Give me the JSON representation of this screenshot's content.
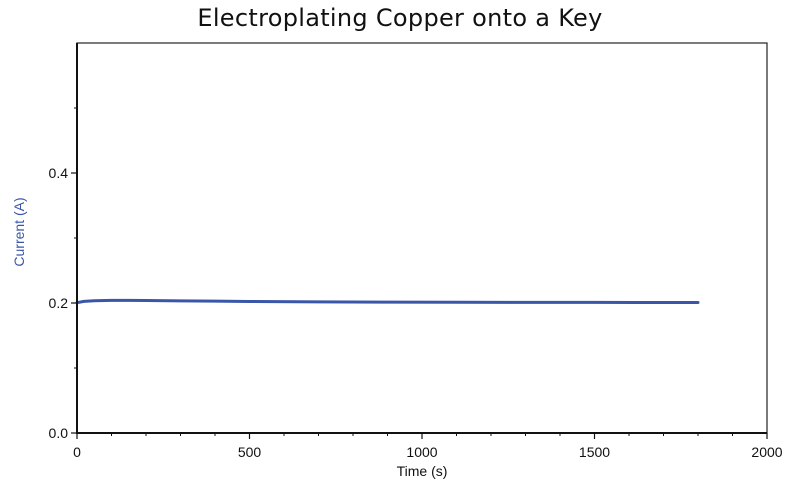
{
  "chart_data": {
    "type": "line",
    "title": "Electroplating Copper onto a Key",
    "xlabel": "Time (s)",
    "ylabel": "Current (A)",
    "xlim": [
      0,
      2000
    ],
    "ylim": [
      0,
      0.6
    ],
    "x_ticks": [
      0,
      500,
      1000,
      1500,
      2000
    ],
    "x_tick_labels": [
      "0",
      "500",
      "1000",
      "1500",
      "2000"
    ],
    "y_ticks": [
      0.0,
      0.2,
      0.4
    ],
    "y_tick_labels": [
      "0.0",
      "0.2",
      "0.4"
    ],
    "y_minor_ticks": [
      0.1,
      0.3,
      0.5
    ],
    "x_minor_ticks": [
      100,
      200,
      300,
      400,
      600,
      700,
      800,
      900,
      1100,
      1200,
      1300,
      1400,
      1600,
      1700,
      1800,
      1900
    ],
    "grid": false,
    "series": [
      {
        "color": "#3a56a8",
        "x": [
          0,
          20,
          50,
          100,
          150,
          200,
          300,
          400,
          500,
          700,
          900,
          1100,
          1300,
          1500,
          1700,
          1800
        ],
        "y": [
          0.2005,
          0.2025,
          0.2035,
          0.204,
          0.204,
          0.2038,
          0.2033,
          0.2028,
          0.2024,
          0.2018,
          0.2014,
          0.2012,
          0.201,
          0.2009,
          0.2008,
          0.2008
        ]
      }
    ]
  }
}
